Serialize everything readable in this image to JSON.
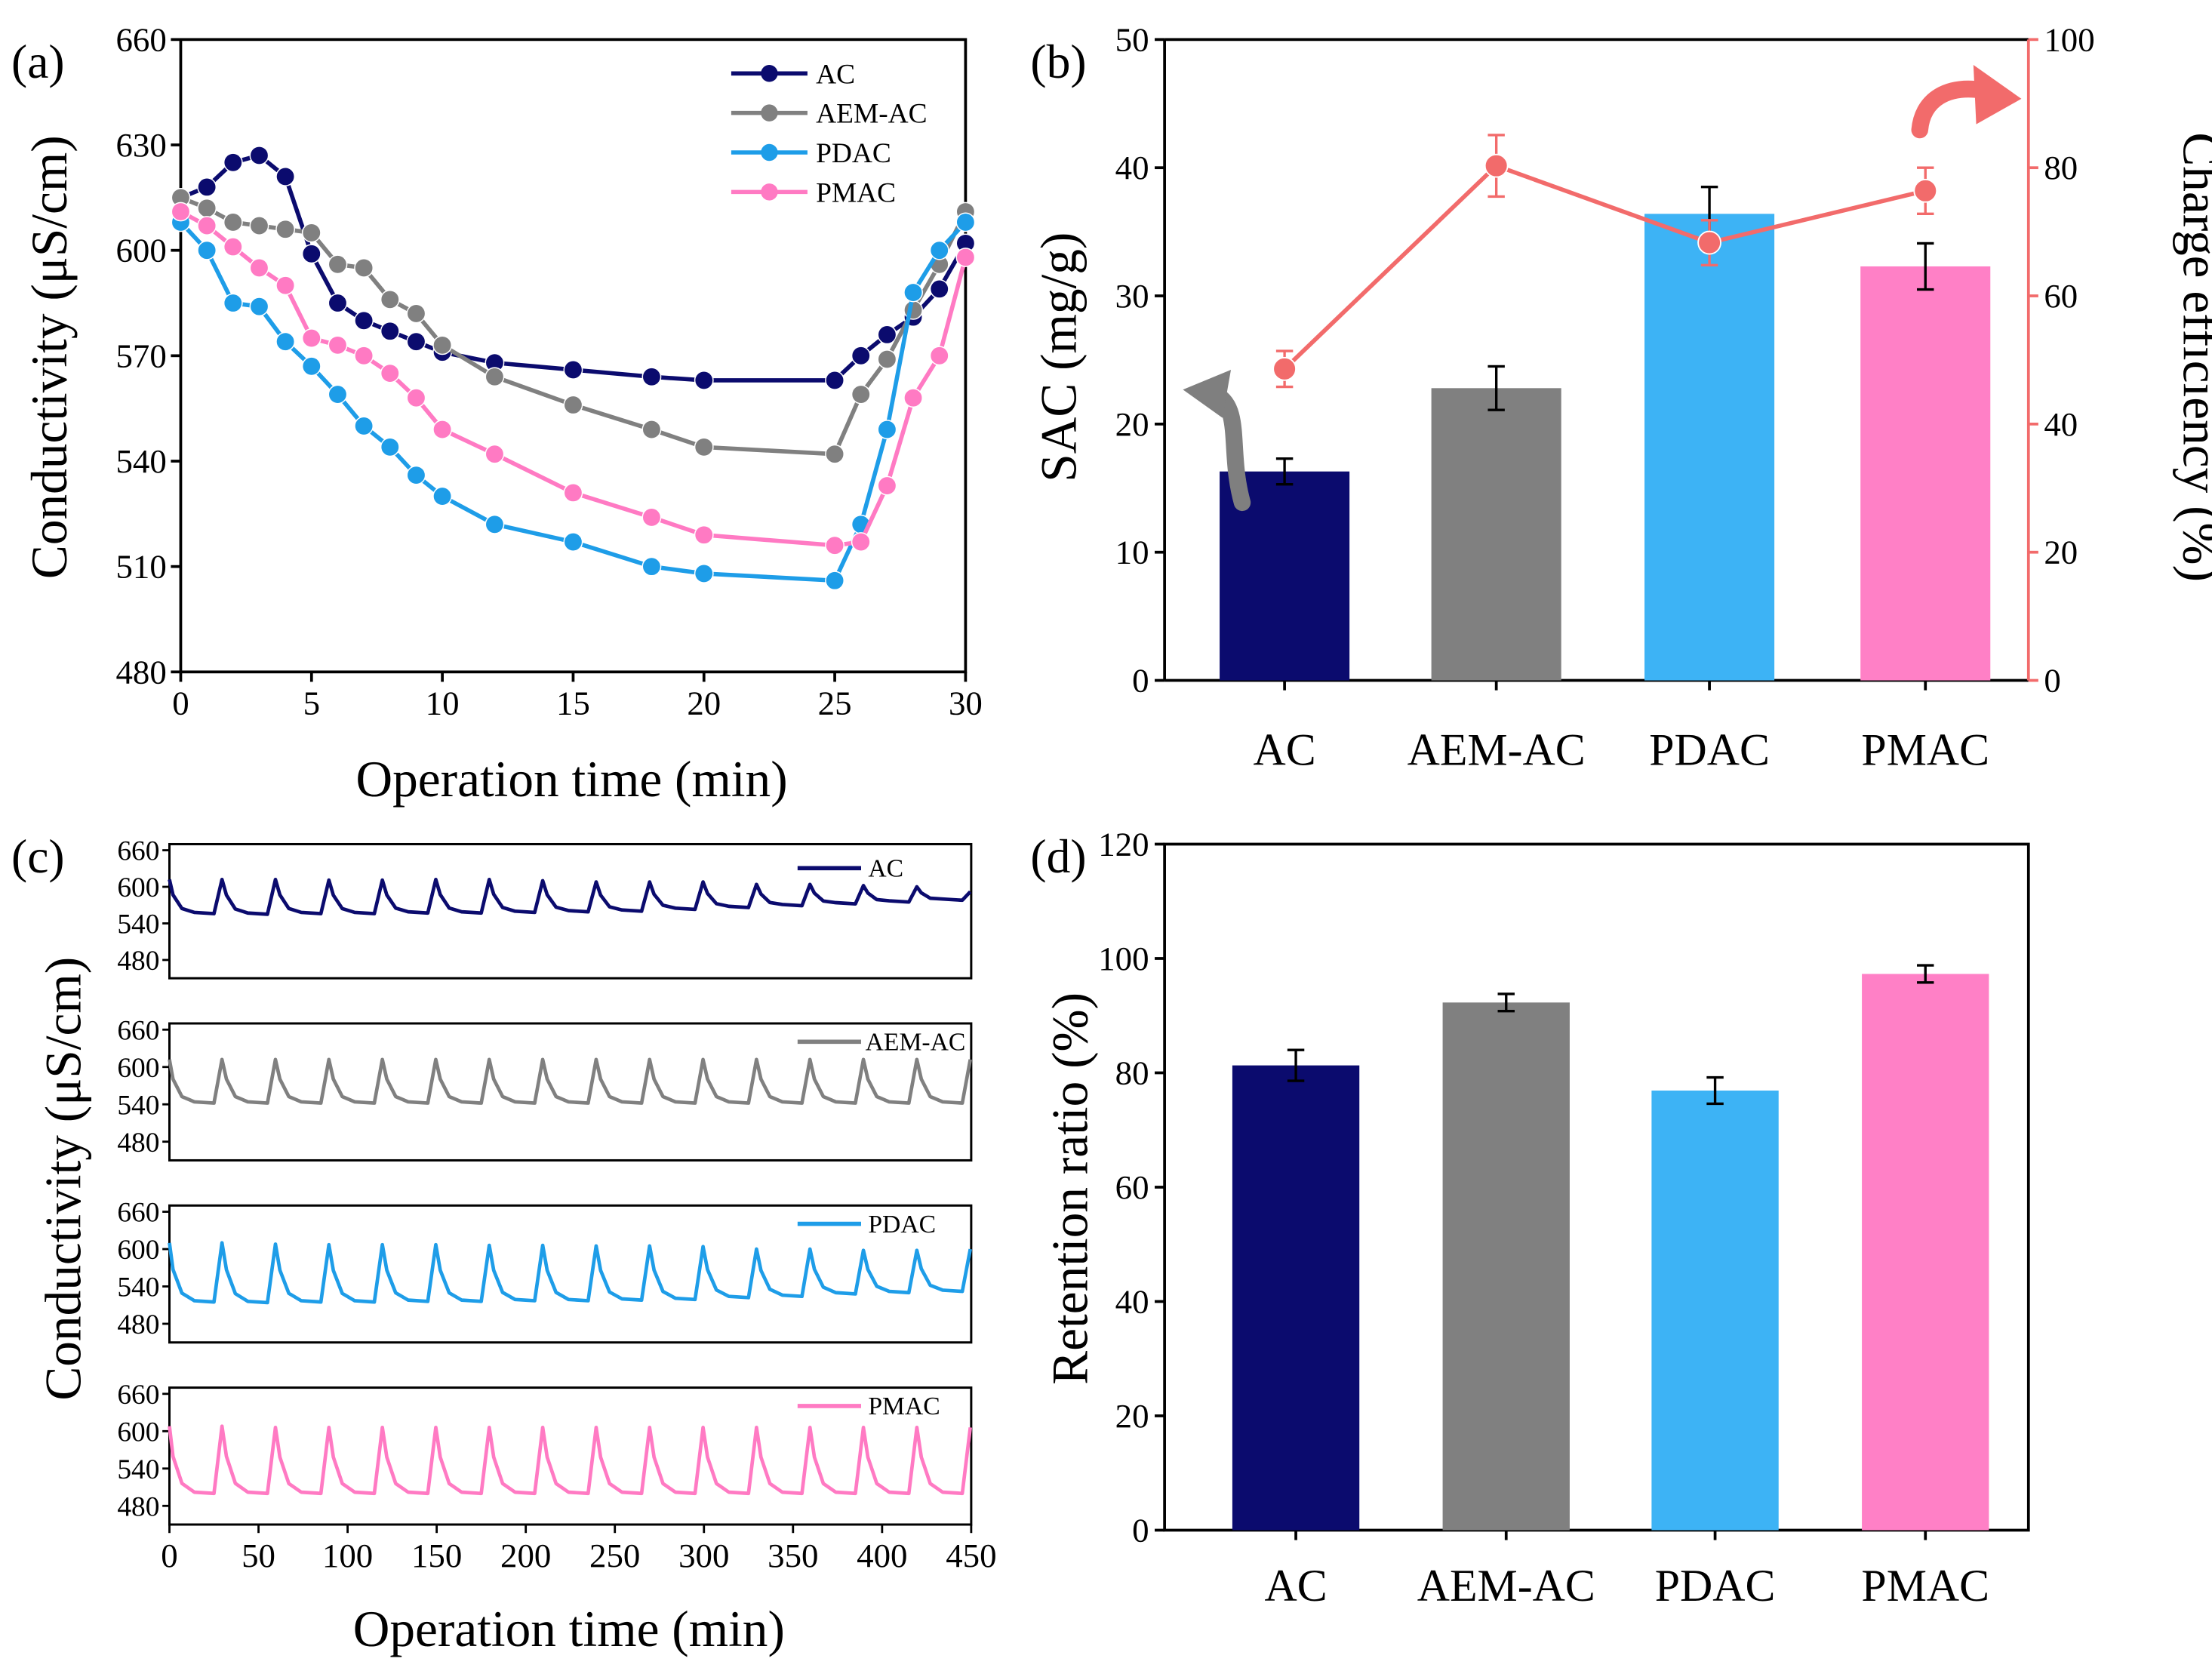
{
  "colors": {
    "AC": "#0b0b6e",
    "AEM-AC": "#808080",
    "PDAC": "#1e9de8",
    "PMAC": "#ff7ac3",
    "PDAC_bar": "#3db3f5",
    "PMAC_bar": "#ff80c6",
    "charge_efficiency": "#f26b6b",
    "frame": "#000000"
  },
  "chart_data": [
    {
      "panel": "(a)",
      "type": "line",
      "xlabel": "Operation time (min)",
      "ylabel": "Conductivity (μS/cm)",
      "xlim": [
        0,
        30
      ],
      "ylim": [
        480,
        660
      ],
      "xticks": [
        0,
        5,
        10,
        15,
        20,
        25,
        30
      ],
      "yticks": [
        480,
        510,
        540,
        570,
        600,
        630,
        660
      ],
      "legend": "top-right",
      "series": [
        {
          "name": "AC",
          "x": [
            0,
            1,
            2,
            3,
            4,
            5,
            6,
            7,
            8,
            9,
            10,
            12,
            15,
            18,
            20,
            25,
            26,
            27,
            28,
            29,
            30
          ],
          "y": [
            615,
            618,
            625,
            627,
            621,
            599,
            585,
            580,
            577,
            574,
            571,
            568,
            566,
            564,
            563,
            563,
            570,
            576,
            581,
            589,
            602
          ]
        },
        {
          "name": "AEM-AC",
          "x": [
            0,
            1,
            2,
            3,
            4,
            5,
            6,
            7,
            8,
            9,
            10,
            12,
            15,
            18,
            20,
            25,
            26,
            27,
            28,
            29,
            30
          ],
          "y": [
            615,
            612,
            608,
            607,
            606,
            605,
            596,
            595,
            586,
            582,
            573,
            564,
            556,
            549,
            544,
            542,
            559,
            569,
            583,
            596,
            611
          ]
        },
        {
          "name": "PDAC",
          "x": [
            0,
            1,
            2,
            3,
            4,
            5,
            6,
            7,
            8,
            9,
            10,
            12,
            15,
            18,
            20,
            25,
            26,
            27,
            28,
            29,
            30
          ],
          "y": [
            608,
            600,
            585,
            584,
            574,
            567,
            559,
            550,
            544,
            536,
            530,
            522,
            517,
            510,
            508,
            506,
            522,
            549,
            588,
            600,
            608
          ]
        },
        {
          "name": "PMAC",
          "x": [
            0,
            1,
            2,
            3,
            4,
            5,
            6,
            7,
            8,
            9,
            10,
            12,
            15,
            18,
            20,
            25,
            26,
            27,
            28,
            29,
            30
          ],
          "y": [
            611,
            607,
            601,
            595,
            590,
            575,
            573,
            570,
            565,
            558,
            549,
            542,
            531,
            524,
            519,
            516,
            517,
            533,
            558,
            570,
            598
          ]
        }
      ]
    },
    {
      "panel": "(b)",
      "type": "bar",
      "categories": [
        "AC",
        "AEM-AC",
        "PDAC",
        "PMAC"
      ],
      "ylabel": "SAC (mg/g)",
      "ylabel_right": "Charge efficiency (%)",
      "ylim": [
        0,
        50
      ],
      "yticks": [
        0,
        10,
        20,
        30,
        40,
        50
      ],
      "ylim_right": [
        0,
        100
      ],
      "yticks_right": [
        0,
        20,
        40,
        60,
        80,
        100
      ],
      "bars": {
        "values": [
          16.3,
          22.8,
          36.4,
          32.3
        ],
        "errors": [
          1.0,
          1.7,
          2.1,
          1.8
        ]
      },
      "line": {
        "name": "Charge efficiency",
        "values": [
          48.6,
          80.3,
          68.3,
          76.4
        ],
        "errors": [
          2.8,
          4.8,
          3.5,
          3.6
        ]
      }
    },
    {
      "panel": "(c)",
      "type": "line",
      "xlabel": "Operation time (min)",
      "ylabel": "Conductivity (μS/cm)",
      "xlim": [
        0,
        450
      ],
      "xticks": [
        0,
        50,
        100,
        150,
        200,
        250,
        300,
        350,
        400,
        450
      ],
      "yticks": [
        480,
        540,
        600,
        660
      ],
      "cycle_period_min": 30,
      "legend": "top-right",
      "series": [
        {
          "name": "AC",
          "peaks": [
            612,
            612,
            612,
            611,
            611,
            612,
            612,
            610,
            608,
            608,
            608,
            604,
            604,
            602,
            600
          ],
          "minima": [
            556,
            555,
            556,
            556,
            557,
            557,
            558,
            559,
            560,
            563,
            566,
            569,
            572,
            575,
            578
          ],
          "end": 592
        },
        {
          "name": "AEM-AC",
          "peaks": [
            612,
            612,
            612,
            612,
            612,
            612,
            612,
            612,
            612,
            612,
            612,
            612,
            612,
            612,
            612
          ],
          "minima": [
            542,
            542,
            542,
            542,
            542,
            542,
            542,
            542,
            542,
            542,
            542,
            542,
            542,
            542,
            542
          ],
          "end": 612
        },
        {
          "name": "PDAC",
          "peaks": [
            610,
            610,
            608,
            607,
            607,
            607,
            606,
            606,
            605,
            605,
            604,
            600,
            600,
            598,
            598
          ],
          "minima": [
            515,
            514,
            515,
            515,
            516,
            516,
            517,
            517,
            518,
            519,
            522,
            524,
            528,
            530,
            532
          ],
          "end": 600
        },
        {
          "name": "PMAC",
          "peaks": [
            608,
            608,
            606,
            606,
            606,
            606,
            606,
            606,
            606,
            606,
            606,
            606,
            606,
            606,
            606
          ],
          "minima": [
            500,
            500,
            500,
            500,
            500,
            500,
            500,
            500,
            500,
            500,
            500,
            500,
            500,
            500,
            500
          ],
          "end": 606
        }
      ]
    },
    {
      "panel": "(d)",
      "type": "bar",
      "categories": [
        "AC",
        "AEM-AC",
        "PDAC",
        "PMAC"
      ],
      "ylabel": "Retention ratio (%)",
      "ylim": [
        0,
        120
      ],
      "yticks": [
        0,
        20,
        40,
        60,
        80,
        100,
        120
      ],
      "values": [
        81.3,
        92.3,
        76.9,
        97.3
      ],
      "errors": [
        2.7,
        1.5,
        2.3,
        1.5
      ]
    }
  ]
}
